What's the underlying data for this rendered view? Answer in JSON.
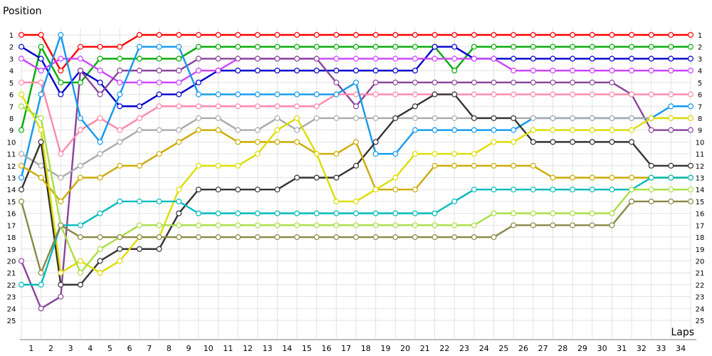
{
  "chart_data": {
    "type": "line",
    "ylabel": "Position",
    "xlabel": "Laps",
    "x": [
      0,
      1,
      2,
      3,
      4,
      5,
      6,
      7,
      8,
      9,
      10,
      11,
      12,
      13,
      14,
      15,
      16,
      17,
      18,
      19,
      20,
      21,
      22,
      23,
      24,
      25,
      26,
      27,
      28,
      29,
      30,
      31,
      32,
      33,
      34
    ],
    "x_tick_labels": [
      1,
      2,
      3,
      4,
      5,
      6,
      7,
      8,
      9,
      10,
      11,
      12,
      13,
      14,
      15,
      16,
      17,
      18,
      19,
      20,
      21,
      22,
      23,
      24,
      25,
      26,
      27,
      28,
      29,
      30,
      31,
      32,
      33,
      34
    ],
    "ylim": [
      1,
      25
    ],
    "y_inverted": true,
    "y_tick_labels": [
      1,
      2,
      3,
      4,
      5,
      6,
      7,
      8,
      9,
      10,
      11,
      12,
      13,
      14,
      15,
      16,
      17,
      18,
      19,
      20,
      21,
      22,
      23,
      24,
      25
    ],
    "grid": true,
    "legend": "none",
    "series": [
      {
        "color": "#ff0000",
        "values": [
          1,
          1,
          4,
          2,
          2,
          2,
          1,
          1,
          1,
          1,
          1,
          1,
          1,
          1,
          1,
          1,
          1,
          1,
          1,
          1,
          1,
          1,
          1,
          1,
          1,
          1,
          1,
          1,
          1,
          1,
          1,
          1,
          1,
          1,
          1
        ]
      },
      {
        "color": "#00aa00",
        "values": [
          9,
          2,
          5,
          5,
          3,
          3,
          3,
          3,
          3,
          2,
          2,
          2,
          2,
          2,
          2,
          2,
          2,
          2,
          2,
          2,
          2,
          2,
          4,
          2,
          2,
          2,
          2,
          2,
          2,
          2,
          2,
          2,
          2,
          2,
          2
        ]
      },
      {
        "color": "#0000cc",
        "values": [
          2,
          3,
          6,
          4,
          5,
          7,
          7,
          6,
          6,
          5,
          4,
          4,
          4,
          4,
          4,
          4,
          4,
          4,
          4,
          4,
          4,
          2,
          2,
          3,
          3,
          3,
          3,
          3,
          3,
          3,
          3,
          3,
          3,
          3,
          3
        ]
      },
      {
        "color": "#cc44ff",
        "values": [
          3,
          4,
          3,
          3,
          4,
          5,
          5,
          5,
          5,
          4,
          4,
          3,
          3,
          3,
          3,
          3,
          3,
          3,
          3,
          3,
          3,
          3,
          3,
          3,
          3,
          4,
          4,
          4,
          4,
          4,
          4,
          4,
          4,
          4,
          4
        ]
      },
      {
        "color": "#884499",
        "values": [
          20,
          24,
          23,
          4,
          6,
          4,
          4,
          4,
          4,
          3,
          3,
          3,
          3,
          3,
          3,
          3,
          5,
          7,
          5,
          5,
          5,
          5,
          5,
          5,
          5,
          5,
          5,
          5,
          5,
          5,
          5,
          6,
          9,
          9,
          9
        ]
      },
      {
        "color": "#ff88aa",
        "values": [
          5,
          5,
          11,
          9,
          8,
          9,
          8,
          7,
          7,
          7,
          7,
          7,
          7,
          7,
          7,
          7,
          6,
          6,
          6,
          6,
          6,
          6,
          6,
          6,
          6,
          6,
          6,
          6,
          6,
          6,
          6,
          6,
          6,
          6,
          6
        ]
      },
      {
        "color": "#1199ee",
        "values": [
          13,
          6,
          1,
          8,
          10,
          6,
          2,
          2,
          2,
          6,
          6,
          6,
          6,
          6,
          6,
          6,
          6,
          5,
          11,
          11,
          9,
          9,
          9,
          9,
          9,
          9,
          8,
          8,
          8,
          8,
          8,
          8,
          8,
          7,
          7
        ]
      },
      {
        "color": "#aaaaaa",
        "values": [
          11,
          12,
          13,
          12,
          11,
          10,
          9,
          9,
          9,
          8,
          8,
          9,
          9,
          8,
          9,
          8,
          8,
          8,
          8,
          8,
          8,
          8,
          8,
          8,
          8,
          8,
          8,
          8,
          8,
          8,
          8,
          8,
          8,
          8,
          8
        ]
      },
      {
        "color": "#333333",
        "values": [
          14,
          10,
          22,
          22,
          20,
          19,
          19,
          19,
          16,
          14,
          14,
          14,
          14,
          14,
          13,
          13,
          13,
          12,
          10,
          8,
          7,
          6,
          6,
          8,
          8,
          8,
          10,
          10,
          10,
          10,
          10,
          10,
          12,
          12,
          12
        ]
      },
      {
        "color": "#ccaa00",
        "values": [
          12,
          13,
          15,
          13,
          13,
          12,
          12,
          11,
          10,
          9,
          9,
          10,
          10,
          10,
          10,
          11,
          11,
          10,
          14,
          14,
          14,
          12,
          12,
          12,
          12,
          12,
          12,
          13,
          13,
          13,
          13,
          13,
          13,
          13,
          13
        ]
      },
      {
        "color": "#dddd00",
        "values": [
          6,
          9,
          21,
          20,
          21,
          20,
          18,
          18,
          14,
          12,
          12,
          12,
          11,
          9,
          8,
          11,
          15,
          15,
          14,
          13,
          11,
          11,
          11,
          11,
          10,
          10,
          9,
          9,
          9,
          9,
          9,
          9,
          8,
          8,
          8
        ]
      },
      {
        "color": "#00bbbb",
        "values": [
          22,
          22,
          17,
          17,
          16,
          15,
          15,
          15,
          15,
          16,
          16,
          16,
          16,
          16,
          16,
          16,
          16,
          16,
          16,
          16,
          16,
          16,
          15,
          14,
          14,
          14,
          14,
          14,
          14,
          14,
          14,
          14,
          13,
          13,
          13
        ]
      },
      {
        "color": "#aadd44",
        "values": [
          7,
          8,
          17,
          21,
          19,
          18,
          17,
          17,
          17,
          17,
          17,
          17,
          17,
          17,
          17,
          17,
          17,
          17,
          17,
          17,
          17,
          17,
          17,
          17,
          16,
          16,
          16,
          16,
          16,
          16,
          16,
          14,
          14,
          14,
          14
        ]
      },
      {
        "color": "#888844",
        "values": [
          15,
          21,
          17,
          18,
          18,
          18,
          18,
          18,
          18,
          18,
          18,
          18,
          18,
          18,
          18,
          18,
          18,
          18,
          18,
          18,
          18,
          18,
          18,
          18,
          18,
          17,
          17,
          17,
          17,
          17,
          17,
          15,
          15,
          15,
          15
        ]
      }
    ]
  }
}
